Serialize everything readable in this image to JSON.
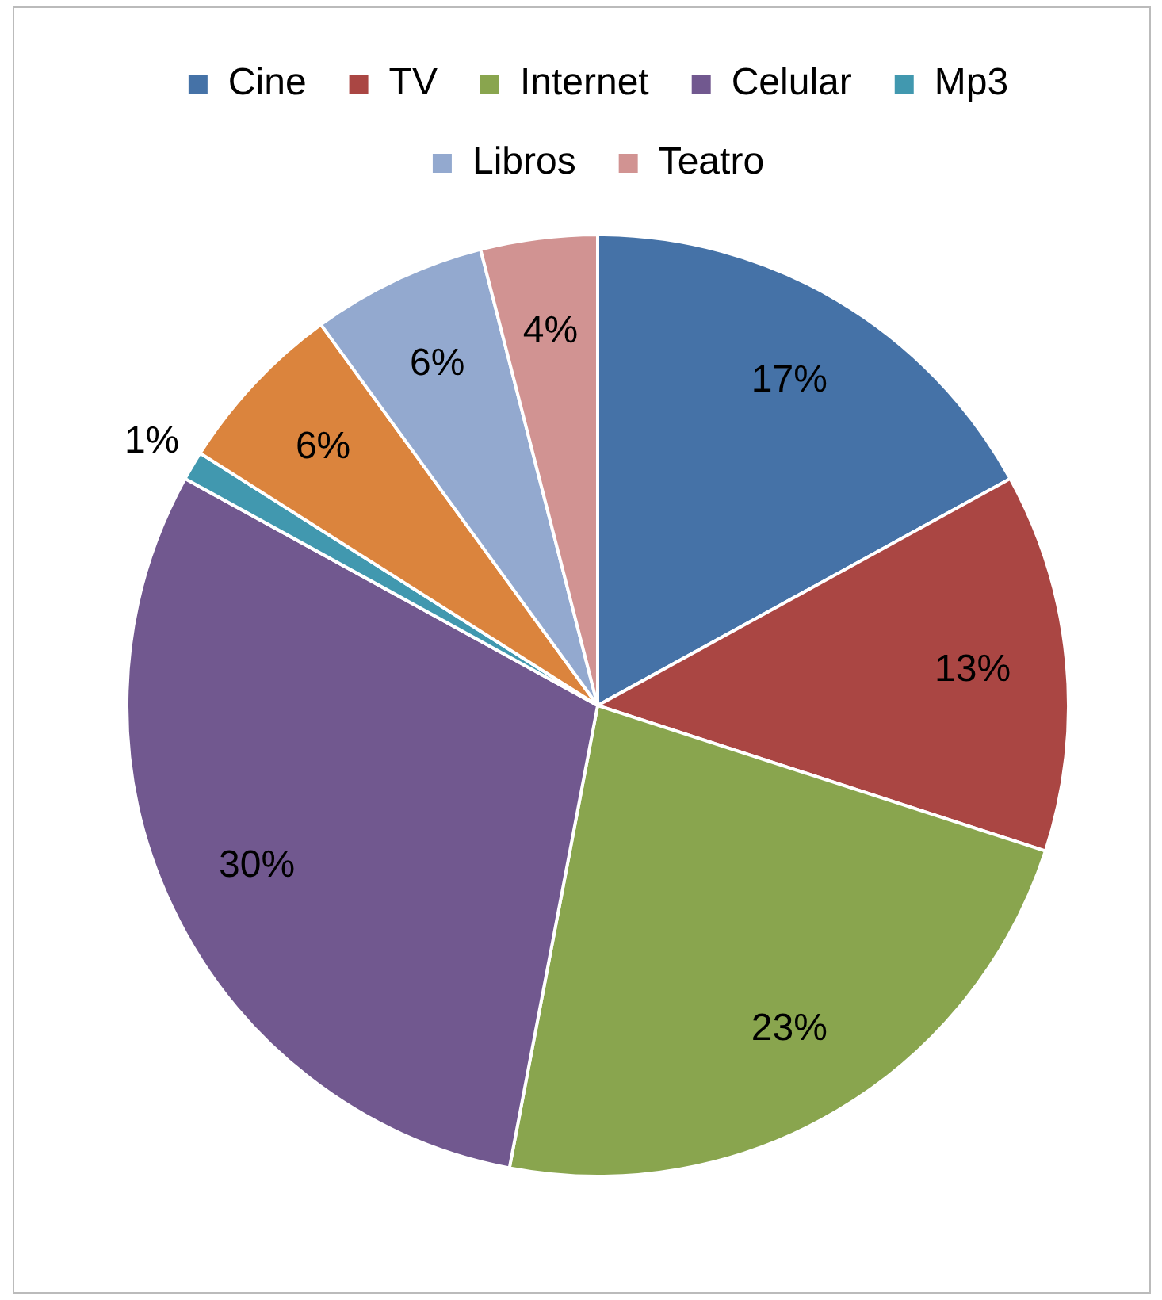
{
  "chart_data": {
    "type": "pie",
    "categories": [
      "Cine",
      "TV",
      "Internet",
      "Celular",
      "Mp3",
      null,
      "Libros",
      "Teatro"
    ],
    "values": [
      17,
      13,
      23,
      30,
      1,
      6,
      6,
      4
    ],
    "colors": [
      "#4572a7",
      "#aa4643",
      "#89a54e",
      "#71588f",
      "#4198af",
      "#db843d",
      "#93a9cf",
      "#d19392"
    ],
    "value_labels": [
      "17%",
      "13%",
      "23%",
      "30%",
      "1%",
      "6%",
      "6%",
      "4%"
    ],
    "legend": "top"
  }
}
